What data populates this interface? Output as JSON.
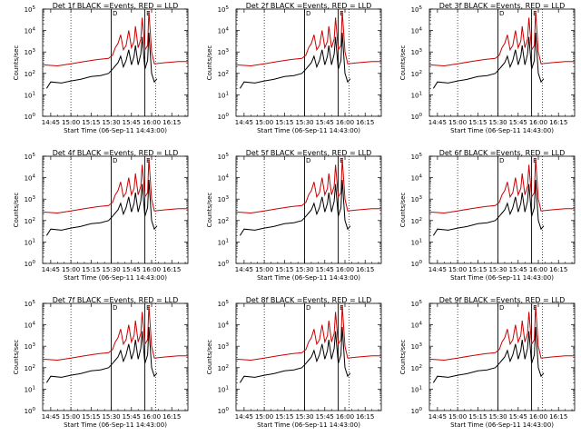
{
  "chart_data": {
    "type": "line",
    "layout": "3x3 grid of panels",
    "y_scale": "log",
    "ylim": [
      1,
      100000
    ],
    "y_ticks": [
      "10^0",
      "10^1",
      "10^2",
      "10^3",
      "10^4",
      "10^5"
    ],
    "x_tick_labels": [
      "14:45",
      "15:00",
      "15:15",
      "15:30",
      "15:45",
      "16:00",
      "16:15"
    ],
    "x_tick_minutes": [
      0,
      15,
      30,
      45,
      60,
      75,
      90
    ],
    "xlim_minutes": [
      -6,
      102
    ],
    "xlabel": "Start Time (06-Sep-11 14:43:00)",
    "ylabel": "Counts/sec",
    "series_colors": {
      "Events": "#000000",
      "LLD": "#cc0000"
    },
    "markers": {
      "dotted_lines_minutes": [
        15,
        78
      ],
      "solid_lines_minutes": [
        45,
        70
      ],
      "tick_labels": [
        "D",
        "E"
      ]
    },
    "common_events_curve": [
      [
        -3,
        1.3
      ],
      [
        0,
        1.6
      ],
      [
        8,
        1.55
      ],
      [
        15,
        1.65
      ],
      [
        22,
        1.72
      ],
      [
        30,
        1.85
      ],
      [
        37,
        1.9
      ],
      [
        43,
        2.0
      ],
      [
        46,
        2.2
      ],
      [
        48,
        2.35
      ],
      [
        50,
        2.5
      ],
      [
        52,
        2.8
      ],
      [
        54,
        2.3
      ],
      [
        56,
        2.6
      ],
      [
        58,
        3.1
      ],
      [
        60,
        2.4
      ],
      [
        62,
        2.8
      ],
      [
        63,
        3.3
      ],
      [
        65,
        2.4
      ],
      [
        67,
        2.9
      ],
      [
        68,
        3.7
      ],
      [
        70,
        2.2
      ],
      [
        72,
        2.6
      ],
      [
        73,
        3.9
      ],
      [
        75,
        2.0
      ],
      [
        77,
        1.6
      ],
      [
        79,
        1.75
      ]
    ],
    "common_lld_curve": [
      [
        -6,
        2.4
      ],
      [
        5,
        2.35
      ],
      [
        15,
        2.45
      ],
      [
        25,
        2.55
      ],
      [
        35,
        2.65
      ],
      [
        43,
        2.7
      ],
      [
        46,
        2.85
      ],
      [
        48,
        3.2
      ],
      [
        50,
        3.4
      ],
      [
        52,
        3.8
      ],
      [
        54,
        3.1
      ],
      [
        56,
        3.3
      ],
      [
        58,
        4.0
      ],
      [
        60,
        3.2
      ],
      [
        62,
        3.5
      ],
      [
        63,
        4.2
      ],
      [
        65,
        3.2
      ],
      [
        67,
        3.6
      ],
      [
        68,
        4.6
      ],
      [
        70,
        3.1
      ],
      [
        72,
        3.3
      ],
      [
        73,
        4.9
      ],
      [
        75,
        3.0
      ],
      [
        77,
        2.45
      ],
      [
        85,
        2.5
      ],
      [
        95,
        2.55
      ],
      [
        102,
        2.55
      ]
    ],
    "panels": [
      {
        "title": "Det 1f BLACK =Events, RED = LLD"
      },
      {
        "title": "Det 2f BLACK =Events, RED = LLD"
      },
      {
        "title": "Det 3f BLACK =Events, RED = LLD"
      },
      {
        "title": "Det 4f BLACK =Events, RED = LLD"
      },
      {
        "title": "Det 5f BLACK =Events, RED = LLD"
      },
      {
        "title": "Det 6f BLACK =Events, RED = LLD"
      },
      {
        "title": "Det 7f BLACK =Events, RED = LLD"
      },
      {
        "title": "Det 8f BLACK =Events, RED = LLD"
      },
      {
        "title": "Det 9f BLACK =Events, RED = LLD"
      }
    ]
  }
}
